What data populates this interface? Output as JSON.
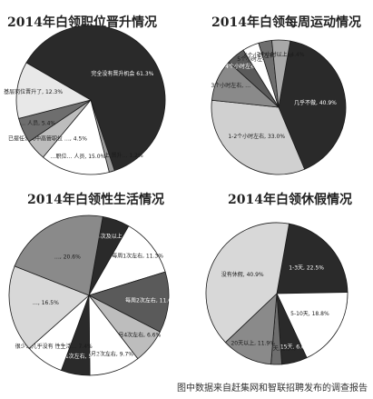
{
  "caption": "图中数据来自赶集网和智联招聘发布的调查报告",
  "chart_data": [
    {
      "type": "pie",
      "title": "2014年白领职位晋升情况",
      "slices": [
        {
          "label": "完全没有晋升机会",
          "value": 61.3,
          "color": "#2a2a2a",
          "label_text": "完全没有晋升机会 61.3%"
        },
        {
          "label": "跳过两级及以上晋升",
          "value": 1.2,
          "color": "#9a9a9a",
          "label_text": "跳过两级及以上 晋升… 1.2%"
        },
        {
          "label": "…",
          "value": 15.0,
          "color": "#ffffff",
          "label_text": "…职位… 人员, 15.0%"
        },
        {
          "label": "已提任公司中高管职位",
          "value": 4.5,
          "color": "#bdbdbd",
          "label_text": "已提任公司中高管职位 …, 4.5%"
        },
        {
          "label": "…",
          "value": 5.4,
          "color": "#6e6e6e",
          "label_text": "… 人员, 5.4%"
        },
        {
          "label": "基层岗位晋升",
          "value": 12.3,
          "color": "#e8e8e8",
          "label_text": "基层岗位晋升了, 12.3%"
        }
      ]
    },
    {
      "type": "pie",
      "title": "2014年白领每周运动情况",
      "slices": [
        {
          "label": "几乎不做",
          "value": 40.9,
          "color": "#2a2a2a",
          "label_text": "几乎不做, 40.9%"
        },
        {
          "label": "1-2个小时左右",
          "value": 33.0,
          "color": "#d0d0d0",
          "label_text": "1-2个小时左右, 33.0%"
        },
        {
          "label": "3个小时左右",
          "value": 10.0,
          "color": "#8a8a8a",
          "label_text": "3个小时左右, …"
        },
        {
          "label": "4个小时左右",
          "value": 4.5,
          "color": "#5a5a5a",
          "label_text": "4个小时左右, …"
        },
        {
          "label": "5个小时左右",
          "value": 4.0,
          "color": "#ffffff",
          "label_text": "5个小时左右, …"
        },
        {
          "label": "6个小时左右",
          "value": 3.2,
          "color": "#6e6e6e",
          "label_text": "6个小时左右, 3.2%"
        },
        {
          "label": "7个小时以上",
          "value": 4.4,
          "color": "#a8a8a8",
          "label_text": "7个小时以上, 4.4%"
        }
      ]
    },
    {
      "type": "pie",
      "title": "2014年白领性生活情况",
      "slices": [
        {
          "label": "…",
          "value": 5.2,
          "color": "#2a2a2a",
          "label_text": "…每周3次及以上, 5.2%"
        },
        {
          "label": "每周1次左右",
          "value": 11.3,
          "color": "#ffffff",
          "label_text": "每周1次左右, 11.3%"
        },
        {
          "label": "每周2次左右",
          "value": 11.6,
          "color": "#5a5a5a",
          "label_text": "每周2次左右, 11.6%"
        },
        {
          "label": "每月4次左右",
          "value": 6.6,
          "color": "#bdbdbd",
          "label_text": "每月4次左右, 6.6%"
        },
        {
          "label": "每月2次左右",
          "value": 9.7,
          "color": "#ffffff",
          "label_text": "每月2次左右, 9.7%"
        },
        {
          "label": "每月1次左右",
          "value": 5.5,
          "color": "#2a2a2a",
          "label_text": "每月1次左右, 5.5%"
        },
        {
          "label": "很少或几乎没有",
          "value": 7.4,
          "color": "#ffffff",
          "label_text": "很少或几乎没有 性生活… 7.4%"
        },
        {
          "label": "…",
          "value": 16.5,
          "color": "#d8d8d8",
          "label_text": "…, 16.5%"
        },
        {
          "label": "…",
          "value": 20.6,
          "color": "#8a8a8a",
          "label_text": "…, 20.6%"
        }
      ]
    },
    {
      "type": "pie",
      "title": "2014年白领休假情况",
      "slices": [
        {
          "label": "1-3天",
          "value": 22.5,
          "color": "#2a2a2a",
          "label_text": "1-3天, 22.5%"
        },
        {
          "label": "5-10天",
          "value": 18.8,
          "color": "#ffffff",
          "label_text": "5-10天, 18.8%"
        },
        {
          "label": "10-15天",
          "value": 6.0,
          "color": "#2a2a2a",
          "label_text": "10-15天, 6.0%"
        },
        {
          "label": "15-20天",
          "value": 2.5,
          "color": "#6e6e6e",
          "label_text": "15-20天, 2.5%"
        },
        {
          "label": "20天以上",
          "value": 11.9,
          "color": "#8a8a8a",
          "label_text": "20天以上, 11.9%"
        },
        {
          "label": "没有休假",
          "value": 40.9,
          "color": "#d8d8d8",
          "label_text": "没有休假, 40.9%"
        }
      ]
    }
  ]
}
